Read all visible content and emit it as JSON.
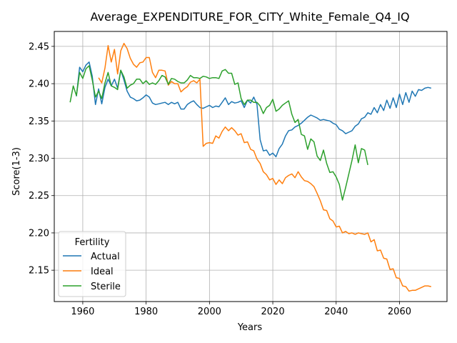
{
  "chart_data": {
    "type": "line",
    "title": "Average_EXPENDITURE_FOR_CITY_White_Female_Q4_IQ",
    "xlabel": "Years",
    "ylabel": "Score(1-3)",
    "xlim": [
      1951,
      2075
    ],
    "ylim": [
      2.108,
      2.47
    ],
    "xticks": [
      1960,
      1980,
      2000,
      2020,
      2040,
      2060
    ],
    "yticks": [
      2.15,
      2.2,
      2.25,
      2.3,
      2.35,
      2.4,
      2.45
    ],
    "ytick_labels": [
      "2.15",
      "2.20",
      "2.25",
      "2.30",
      "2.35",
      "2.40",
      "2.45"
    ],
    "grid": true,
    "legend": {
      "title": "Fertility",
      "placement": "lower-left"
    },
    "series": [
      {
        "name": "Actual",
        "color": "#1f77b4",
        "x": [
          1958,
          1959,
          1960,
          1961,
          1962,
          1963,
          1964,
          1965,
          1966,
          1967,
          1968,
          1969,
          1970,
          1971,
          1972,
          1973,
          1974,
          1975,
          1976,
          1977,
          1978,
          1979,
          1980,
          1981,
          1982,
          1983,
          1984,
          1985,
          1986,
          1987,
          1988,
          1989,
          1990,
          1991,
          1992,
          1993,
          1994,
          1995,
          1996,
          1997,
          1998,
          1999,
          2000,
          2001,
          2002,
          2003,
          2004,
          2005,
          2006,
          2007,
          2008,
          2009,
          2010,
          2011,
          2012,
          2013,
          2014,
          2015,
          2016,
          2017,
          2018,
          2019,
          2020,
          2021,
          2022,
          2023,
          2024,
          2025,
          2026,
          2027,
          2028,
          2029,
          2030,
          2031,
          2032,
          2033,
          2034,
          2035,
          2036,
          2037,
          2038,
          2039,
          2040,
          2041,
          2042,
          2043,
          2044,
          2045,
          2046,
          2047,
          2048,
          2049,
          2050,
          2051,
          2052,
          2053,
          2054,
          2055,
          2056,
          2057,
          2058,
          2059,
          2060,
          2061,
          2062,
          2063,
          2064,
          2065,
          2066,
          2067,
          2068,
          2069,
          2070
        ],
        "values": [
          2.383,
          2.422,
          2.416,
          2.425,
          2.429,
          2.41,
          2.372,
          2.393,
          2.373,
          2.395,
          2.406,
          2.397,
          2.406,
          2.394,
          2.418,
          2.405,
          2.39,
          2.382,
          2.38,
          2.377,
          2.378,
          2.381,
          2.385,
          2.382,
          2.374,
          2.372,
          2.373,
          2.374,
          2.375,
          2.372,
          2.375,
          2.373,
          2.375,
          2.366,
          2.366,
          2.372,
          2.375,
          2.377,
          2.372,
          2.368,
          2.367,
          2.369,
          2.371,
          2.368,
          2.37,
          2.369,
          2.375,
          2.381,
          2.372,
          2.376,
          2.374,
          2.375,
          2.377,
          2.368,
          2.378,
          2.374,
          2.382,
          2.372,
          2.325,
          2.31,
          2.311,
          2.304,
          2.307,
          2.302,
          2.313,
          2.319,
          2.33,
          2.337,
          2.338,
          2.342,
          2.344,
          2.347,
          2.351,
          2.355,
          2.358,
          2.356,
          2.354,
          2.351,
          2.352,
          2.351,
          2.35,
          2.347,
          2.345,
          2.339,
          2.337,
          2.333,
          2.335,
          2.337,
          2.343,
          2.346,
          2.353,
          2.355,
          2.361,
          2.359,
          2.368,
          2.361,
          2.372,
          2.364,
          2.378,
          2.367,
          2.381,
          2.368,
          2.386,
          2.372,
          2.388,
          2.375,
          2.39,
          2.383,
          2.392,
          2.391,
          2.394,
          2.395,
          2.394
        ]
      },
      {
        "name": "Ideal",
        "color": "#ff7f0e",
        "x": [
          1965,
          1966,
          1967,
          1968,
          1969,
          1970,
          1971,
          1972,
          1973,
          1974,
          1975,
          1976,
          1977,
          1978,
          1979,
          1980,
          1981,
          1982,
          1983,
          1984,
          1985,
          1986,
          1987,
          1988,
          1989,
          1990,
          1991,
          1992,
          1993,
          1994,
          1995,
          1996,
          1997,
          1998,
          1999,
          2000,
          2001,
          2002,
          2003,
          2004,
          2005,
          2006,
          2007,
          2008,
          2009,
          2010,
          2011,
          2012,
          2013,
          2014,
          2015,
          2016,
          2017,
          2018,
          2019,
          2020,
          2021,
          2022,
          2023,
          2024,
          2025,
          2026,
          2027,
          2028,
          2029,
          2030,
          2031,
          2032,
          2033,
          2034,
          2035,
          2036,
          2037,
          2038,
          2039,
          2040,
          2041,
          2042,
          2043,
          2044,
          2045,
          2046,
          2047,
          2048,
          2049,
          2050,
          2051,
          2052,
          2053,
          2054,
          2055,
          2056,
          2057,
          2058,
          2059,
          2060,
          2061,
          2062,
          2063,
          2064,
          2065,
          2066,
          2067,
          2068,
          2069,
          2070
        ],
        "values": [
          2.408,
          2.401,
          2.421,
          2.451,
          2.429,
          2.446,
          2.413,
          2.444,
          2.454,
          2.447,
          2.434,
          2.426,
          2.422,
          2.428,
          2.429,
          2.435,
          2.435,
          2.415,
          2.408,
          2.418,
          2.418,
          2.417,
          2.398,
          2.403,
          2.4,
          2.4,
          2.389,
          2.393,
          2.396,
          2.402,
          2.404,
          2.401,
          2.406,
          2.316,
          2.32,
          2.321,
          2.32,
          2.33,
          2.327,
          2.336,
          2.342,
          2.337,
          2.341,
          2.337,
          2.331,
          2.333,
          2.321,
          2.322,
          2.312,
          2.31,
          2.299,
          2.293,
          2.282,
          2.278,
          2.271,
          2.273,
          2.265,
          2.271,
          2.266,
          2.274,
          2.277,
          2.279,
          2.274,
          2.282,
          2.275,
          2.27,
          2.269,
          2.266,
          2.262,
          2.253,
          2.243,
          2.231,
          2.23,
          2.219,
          2.216,
          2.208,
          2.209,
          2.2,
          2.202,
          2.199,
          2.2,
          2.198,
          2.2,
          2.199,
          2.198,
          2.2,
          2.188,
          2.191,
          2.176,
          2.177,
          2.166,
          2.165,
          2.151,
          2.152,
          2.14,
          2.139,
          2.129,
          2.128,
          2.122,
          2.123,
          2.123,
          2.125,
          2.127,
          2.129,
          2.129,
          2.128
        ]
      },
      {
        "name": "Sterile",
        "color": "#2ca02c",
        "x": [
          1956,
          1957,
          1958,
          1959,
          1960,
          1961,
          1962,
          1963,
          1964,
          1965,
          1966,
          1967,
          1968,
          1969,
          1970,
          1971,
          1972,
          1973,
          1974,
          1975,
          1976,
          1977,
          1978,
          1979,
          1980,
          1981,
          1982,
          1983,
          1984,
          1985,
          1986,
          1987,
          1988,
          1989,
          1990,
          1991,
          1992,
          1993,
          1994,
          1995,
          1996,
          1997,
          1998,
          1999,
          2000,
          2001,
          2002,
          2003,
          2004,
          2005,
          2006,
          2007,
          2008,
          2009,
          2010,
          2011,
          2012,
          2013,
          2014,
          2015,
          2016,
          2017,
          2018,
          2019,
          2020,
          2021,
          2022,
          2023,
          2024,
          2025,
          2026,
          2027,
          2028,
          2029,
          2030,
          2031,
          2032,
          2033,
          2034,
          2035,
          2036,
          2037,
          2038,
          2039,
          2040,
          2041,
          2042,
          2043,
          2044,
          2045,
          2046,
          2047,
          2048,
          2049,
          2050
        ],
        "values": [
          2.375,
          2.397,
          2.384,
          2.415,
          2.407,
          2.42,
          2.424,
          2.405,
          2.382,
          2.39,
          2.38,
          2.401,
          2.415,
          2.397,
          2.395,
          2.392,
          2.418,
          2.409,
          2.394,
          2.398,
          2.4,
          2.406,
          2.406,
          2.4,
          2.404,
          2.399,
          2.401,
          2.399,
          2.404,
          2.411,
          2.409,
          2.399,
          2.407,
          2.406,
          2.403,
          2.401,
          2.401,
          2.405,
          2.411,
          2.408,
          2.408,
          2.407,
          2.41,
          2.409,
          2.407,
          2.408,
          2.408,
          2.407,
          2.417,
          2.419,
          2.414,
          2.414,
          2.399,
          2.401,
          2.38,
          2.372,
          2.378,
          2.378,
          2.375,
          2.375,
          2.37,
          2.36,
          2.368,
          2.371,
          2.379,
          2.363,
          2.366,
          2.371,
          2.374,
          2.377,
          2.359,
          2.348,
          2.352,
          2.332,
          2.33,
          2.312,
          2.326,
          2.322,
          2.303,
          2.297,
          2.311,
          2.293,
          2.281,
          2.282,
          2.275,
          2.265,
          2.244,
          2.261,
          2.279,
          2.297,
          2.318,
          2.294,
          2.313,
          2.311,
          2.291
        ]
      }
    ]
  }
}
